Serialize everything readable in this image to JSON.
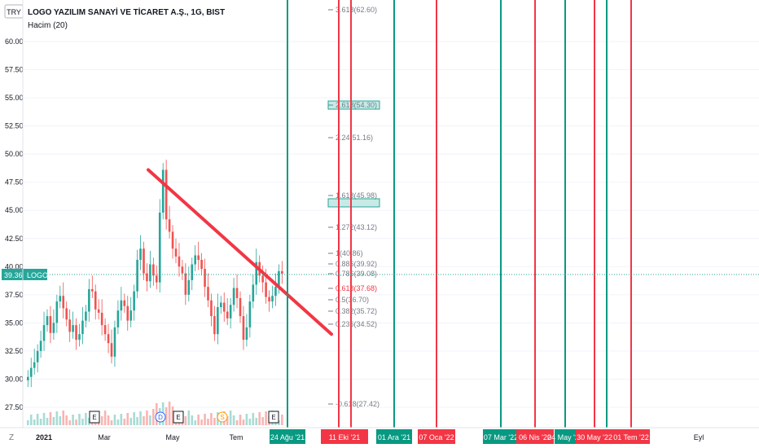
{
  "header": {
    "currency_badge": "TRY",
    "title": "LOGO YAZILIM SANAYİ VE TİCARET A.Ş., 1G, BIST",
    "volume_indicator": "Hacim (20)"
  },
  "price_scale": {
    "labels": [
      "60.00",
      "57.50",
      "55.00",
      "52.50",
      "50.00",
      "47.50",
      "45.00",
      "42.50",
      "40.00",
      "37.50",
      "35.00",
      "32.50",
      "30.00",
      "27.50"
    ],
    "current_price": "39.36",
    "current_symbol": "LOGO",
    "scale_mode": "Z"
  },
  "time_axis": {
    "labels": [
      "2021",
      "Mar",
      "May",
      "Tem",
      "Eyl"
    ],
    "marked_dates": [
      {
        "label": "24 Ağu '21",
        "color": "#089981"
      },
      {
        "label": "11 Eki '21",
        "color": "#f23645"
      },
      {
        "label": "01 Ara '21",
        "color": "#089981"
      },
      {
        "label": "07 Oca '22",
        "color": "#f23645"
      },
      {
        "label": "07 Mar '22",
        "color": "#089981"
      },
      {
        "label": "06 Nis '22",
        "color": "#f23645"
      },
      {
        "label": "04 May '22",
        "color": "#089981"
      },
      {
        "label": "30 May '22",
        "color": "#f23645"
      },
      {
        "label": "01 Tem '22",
        "color": "#f23645"
      }
    ]
  },
  "fib_levels": [
    "3.618(62.60)",
    "2.618(54.30)",
    "2.24(51.16)",
    "1.618(45.98)",
    "1.272(43.12)",
    "1(40.86)",
    "0.886(39.92)",
    "0.786(39.08)",
    "0.618(37.68)",
    "0.5(36.70)",
    "0.382(35.72)",
    "0.236(34.52)",
    "-0.618(27.42)"
  ],
  "event_markers": [
    "E",
    "D",
    "E",
    "S",
    "E"
  ],
  "colors": {
    "up": "#26a69a",
    "down": "#ef5350",
    "trendline": "#f23645",
    "green_line": "#089981",
    "red_line": "#f23645"
  },
  "chart_data": {
    "type": "candlestick",
    "symbol": "LOGO",
    "timeframe": "1G",
    "ylim": [
      26,
      63
    ],
    "last_price": 39.36,
    "trendline": {
      "start_value": 48.6,
      "end_value": 34.0
    },
    "series": [
      {
        "name": "price",
        "values": [
          30.2,
          31.0,
          31.5,
          32.5,
          33.4,
          34.8,
          35.6,
          34.1,
          35.0,
          36.9,
          37.4,
          36.3,
          35.3,
          34.2,
          34.8,
          33.5,
          34.0,
          35.2,
          36.0,
          38.0,
          37.8,
          36.2,
          35.9,
          34.8,
          34.0,
          33.2,
          32.0,
          34.6,
          36.1,
          37.0,
          36.5,
          35.2,
          36.1,
          37.8,
          40.6,
          41.6,
          39.4,
          38.7,
          40.2,
          39.2,
          38.6,
          44.8,
          48.6,
          44.2,
          43.1,
          41.6,
          40.9,
          40.0,
          39.4,
          37.5,
          38.8,
          40.2,
          41.0,
          40.6,
          39.8,
          38.2,
          37.0,
          35.6,
          34.0,
          36.4,
          36.8,
          36.0,
          35.4,
          36.6,
          38.1,
          37.2,
          35.6,
          33.5,
          34.6,
          36.9,
          38.4,
          40.4,
          39.2,
          38.6,
          37.3,
          36.9,
          37.4,
          38.2,
          39.6,
          39.36
        ]
      }
    ]
  }
}
